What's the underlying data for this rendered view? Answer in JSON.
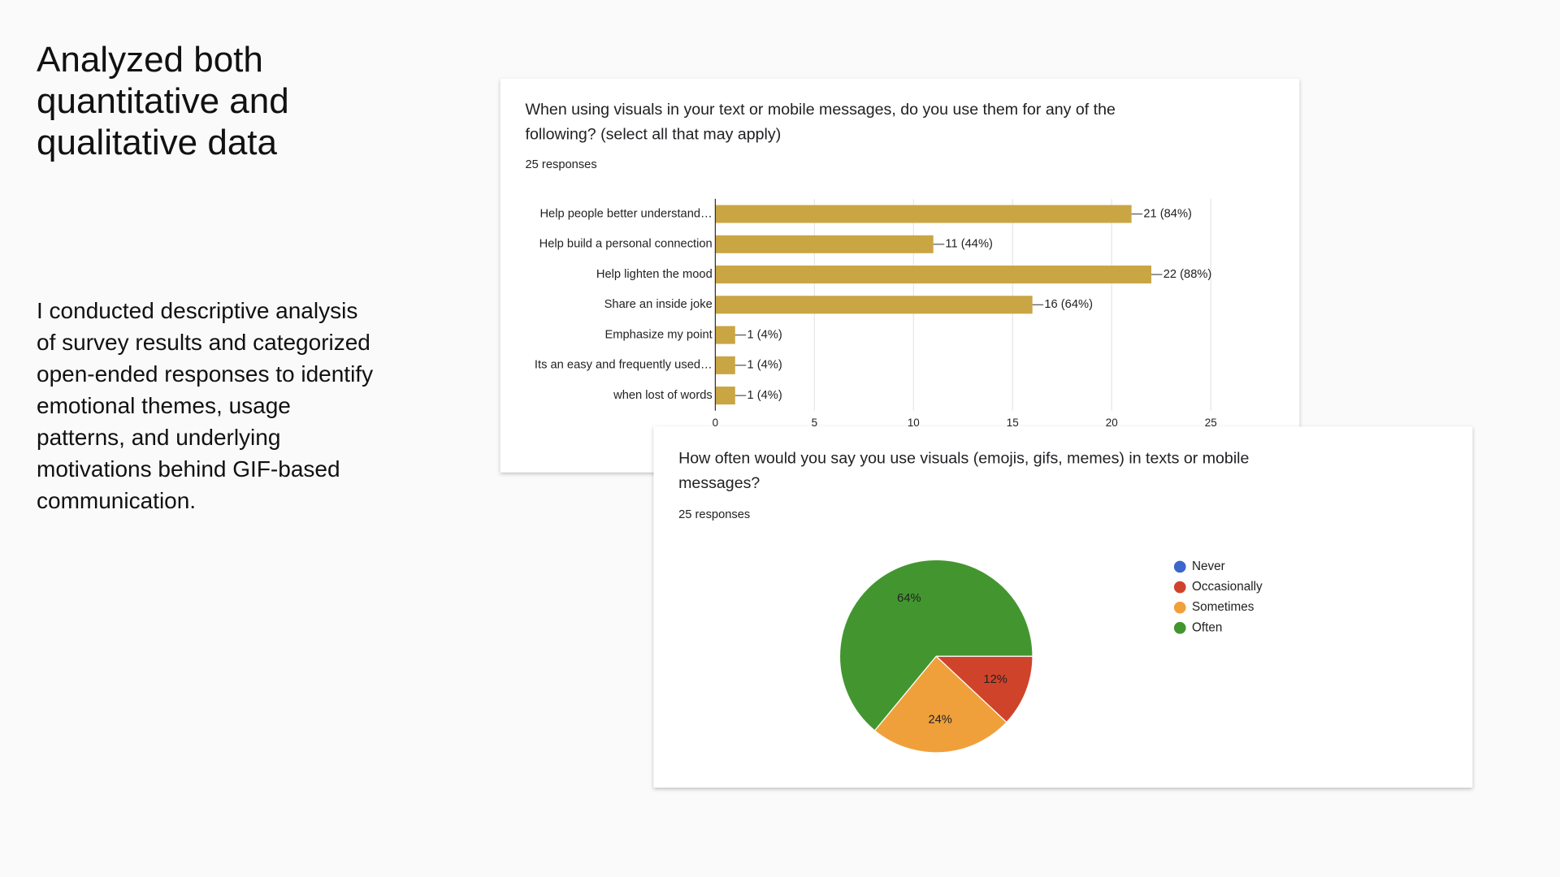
{
  "heading": "Analyzed both quantitative and qualitative data",
  "body": "I conducted descriptive analysis of survey results and categorized open-ended responses to identify emotional themes, usage patterns, and underlying motivations behind GIF-based communication.",
  "chart_data": [
    {
      "type": "bar",
      "orientation": "horizontal",
      "title": "When using visuals in your text or mobile messages, do you use them for any of the following?  (select all that may apply)",
      "subtitle": "25 responses",
      "categories": [
        "Help people better understand…",
        "Help build a personal connection",
        "Help lighten the mood",
        "Share an inside joke",
        "Emphasize my point",
        "Its an easy and frequently used…",
        "when lost of words"
      ],
      "values": [
        21,
        11,
        22,
        16,
        1,
        1,
        1
      ],
      "value_labels": [
        "21 (84%)",
        "11 (44%)",
        "22 (88%)",
        "16 (64%)",
        "1 (4%)",
        "1 (4%)",
        "1 (4%)"
      ],
      "color": "#c9a544",
      "xlim": [
        0,
        25
      ],
      "xticks": [
        0,
        5,
        10,
        15,
        20,
        25
      ],
      "grid": true
    },
    {
      "type": "pie",
      "title": "How often would you say you use visuals (emojis, gifs, memes) in texts or mobile messages?",
      "subtitle": "25 responses",
      "categories": [
        "Never",
        "Occasionally",
        "Sometimes",
        "Often"
      ],
      "values": [
        0,
        12,
        24,
        64
      ],
      "value_labels": [
        null,
        "12%",
        "24%",
        "64%"
      ],
      "colors": [
        "#3c66cc",
        "#d0432b",
        "#f0a03a",
        "#43962f"
      ],
      "legend": "right"
    }
  ]
}
